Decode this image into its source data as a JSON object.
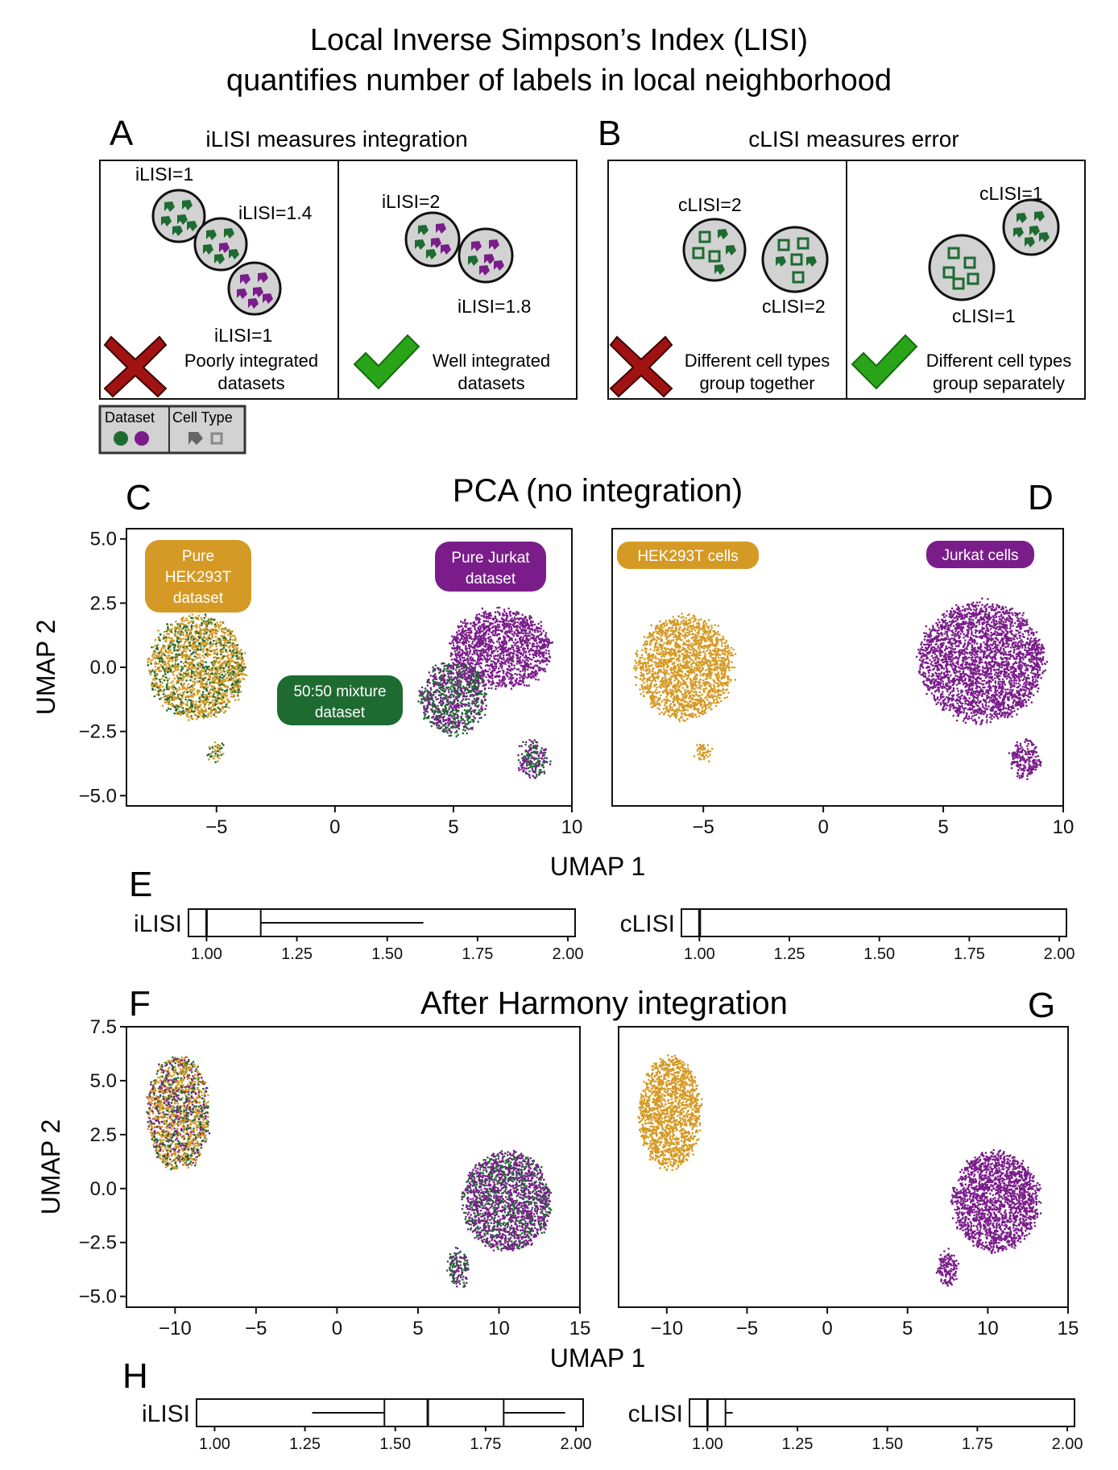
{
  "title_line1": "Local Inverse Simpson’s Index (LISI)",
  "title_line2": "quantifies number of labels in local neighborhood",
  "colors": {
    "green": "#1e6b32",
    "purple": "#7a1d8a",
    "gold": "#d59a25",
    "gray_fill": "#d2d2d2",
    "cross": "#a11313",
    "check": "#2aa519",
    "check_stroke": "#136b0c"
  },
  "panel_a": {
    "letter": "A",
    "title": "iLISI measures integration",
    "bad_labels": [
      "iLISI=1",
      "iLISI=1.4",
      "iLISI=1"
    ],
    "bad_caption": [
      "Poorly integrated",
      "datasets"
    ],
    "good_labels": [
      "iLISI=2",
      "iLISI=1.8"
    ],
    "good_caption": [
      "Well integrated",
      "datasets"
    ]
  },
  "panel_b": {
    "letter": "B",
    "title": "cLISI measures error",
    "bad_labels": [
      "cLISI=2",
      "cLISI=2"
    ],
    "bad_caption": [
      "Different cell types",
      "group together"
    ],
    "good_labels": [
      "cLISI=1",
      "cLISI=1"
    ],
    "good_caption": [
      "Different cell types",
      "group separately"
    ]
  },
  "legend": {
    "dataset_label": "Dataset",
    "celltype_label": "Cell Type"
  },
  "panel_letters": {
    "c": "C",
    "d": "D",
    "e": "E",
    "f": "F",
    "g": "G",
    "h": "H"
  },
  "section_titles": {
    "pca": "PCA (no integration)",
    "harmony": "After Harmony integration"
  },
  "umap_labels": {
    "pure_hek": [
      "Pure",
      "HEK293T",
      "dataset"
    ],
    "pure_jurkat": [
      "Pure Jurkat",
      "dataset"
    ],
    "mixture": [
      "50:50 mixture",
      "dataset"
    ],
    "hek_cells": "HEK293T cells",
    "jurkat_cells": "Jurkat cells"
  },
  "chart_data": [
    {
      "type": "scatter",
      "panel": "C",
      "xlabel": "UMAP 1",
      "ylabel": "UMAP 2",
      "xlim": [
        -8.8,
        10
      ],
      "ylim": [
        -5.4,
        5.4
      ],
      "xticks": [
        "−5",
        "0",
        "5",
        "10"
      ],
      "xtick_values": [
        -5,
        0,
        5,
        10
      ],
      "yticks": [
        "5.0",
        "2.5",
        "0.0",
        "−2.5",
        "−5.0"
      ],
      "ytick_values": [
        5,
        2.5,
        0,
        -2.5,
        -5
      ],
      "clusters": [
        {
          "name": "HEK293T",
          "center": [
            -5.8,
            0.0
          ],
          "radius": [
            2.0,
            2.0
          ],
          "colors": [
            "gold",
            "gold",
            "green"
          ]
        },
        {
          "name": "HEK293T small",
          "center": [
            -5.0,
            -3.3
          ],
          "radius": [
            0.3,
            0.35
          ],
          "colors": [
            "gold",
            "green"
          ]
        },
        {
          "name": "Jurkat",
          "center": [
            7.0,
            0.7
          ],
          "radius": [
            2.1,
            1.5
          ],
          "colors": [
            "purple"
          ]
        },
        {
          "name": "Jurkat mixture",
          "center": [
            5.0,
            -1.2
          ],
          "radius": [
            1.4,
            1.4
          ],
          "colors": [
            "green",
            "purple"
          ]
        },
        {
          "name": "Jurkat small",
          "center": [
            8.4,
            -3.6
          ],
          "radius": [
            0.6,
            0.7
          ],
          "colors": [
            "purple",
            "green"
          ]
        }
      ]
    },
    {
      "type": "scatter",
      "panel": "D",
      "xlim": [
        -8.8,
        10
      ],
      "ylim": [
        -5.4,
        5.4
      ],
      "xticks": [
        "−5",
        "0",
        "5",
        "10"
      ],
      "xtick_values": [
        -5,
        0,
        5,
        10
      ],
      "clusters": [
        {
          "name": "HEK293T cells",
          "center": [
            -5.8,
            0.0
          ],
          "radius": [
            2.0,
            2.0
          ],
          "colors": [
            "gold"
          ]
        },
        {
          "name": "HEK293T small",
          "center": [
            -5.0,
            -3.3
          ],
          "radius": [
            0.3,
            0.35
          ],
          "colors": [
            "gold"
          ]
        },
        {
          "name": "Jurkat cells",
          "center": [
            6.6,
            0.2
          ],
          "radius": [
            2.6,
            2.3
          ],
          "colors": [
            "purple"
          ]
        },
        {
          "name": "Jurkat small",
          "center": [
            8.4,
            -3.6
          ],
          "radius": [
            0.6,
            0.7
          ],
          "colors": [
            "purple"
          ]
        }
      ]
    },
    {
      "type": "box",
      "panel": "E",
      "label": "iLISI",
      "xlim": [
        0.95,
        2.02
      ],
      "xticks": [
        "1.00",
        "1.25",
        "1.50",
        "1.75",
        "2.00"
      ],
      "xtick_values": [
        1.0,
        1.25,
        1.5,
        1.75,
        2.0
      ],
      "whisker_low": 1.0,
      "q1": 1.0,
      "median": 1.0,
      "q3": 1.15,
      "whisker_high": 1.6
    },
    {
      "type": "box",
      "panel": "E",
      "label": "cLISI",
      "xlim": [
        0.95,
        2.02
      ],
      "xticks": [
        "1.00",
        "1.25",
        "1.50",
        "1.75",
        "2.00"
      ],
      "xtick_values": [
        1.0,
        1.25,
        1.5,
        1.75,
        2.0
      ],
      "whisker_low": 1.0,
      "q1": 1.0,
      "median": 1.0,
      "q3": 1.0,
      "whisker_high": 1.0
    },
    {
      "type": "scatter",
      "panel": "F",
      "xlabel": "UMAP 1",
      "ylabel": "UMAP 2",
      "xlim": [
        -13,
        15
      ],
      "ylim": [
        -5.5,
        7.5
      ],
      "xticks": [
        "−10",
        "−5",
        "0",
        "5",
        "10",
        "15"
      ],
      "xtick_values": [
        -10,
        -5,
        0,
        5,
        10,
        15
      ],
      "yticks": [
        "7.5",
        "5.0",
        "2.5",
        "0.0",
        "−2.5",
        "−5.0"
      ],
      "ytick_values": [
        7.5,
        5,
        2.5,
        0,
        -2.5,
        -5
      ],
      "clusters": [
        {
          "name": "HEK293T",
          "center": [
            -9.8,
            3.5
          ],
          "radius": [
            1.9,
            2.6
          ],
          "colors": [
            "gold",
            "green",
            "purple",
            "gold"
          ]
        },
        {
          "name": "Jurkat",
          "center": [
            10.5,
            -0.6
          ],
          "radius": [
            2.7,
            2.3
          ],
          "colors": [
            "purple",
            "green",
            "purple"
          ]
        },
        {
          "name": "Jurkat small",
          "center": [
            7.5,
            -3.7
          ],
          "radius": [
            0.6,
            0.8
          ],
          "colors": [
            "purple",
            "green"
          ]
        }
      ]
    },
    {
      "type": "scatter",
      "panel": "G",
      "xlim": [
        -13,
        15
      ],
      "ylim": [
        -5.5,
        7.5
      ],
      "xticks": [
        "−10",
        "−5",
        "0",
        "5",
        "10",
        "15"
      ],
      "xtick_values": [
        -10,
        -5,
        0,
        5,
        10,
        15
      ],
      "clusters": [
        {
          "name": "HEK293T cells",
          "center": [
            -9.8,
            3.5
          ],
          "radius": [
            1.9,
            2.6
          ],
          "colors": [
            "gold"
          ]
        },
        {
          "name": "Jurkat cells",
          "center": [
            10.5,
            -0.6
          ],
          "radius": [
            2.7,
            2.3
          ],
          "colors": [
            "purple"
          ]
        },
        {
          "name": "Jurkat small",
          "center": [
            7.5,
            -3.7
          ],
          "radius": [
            0.6,
            0.8
          ],
          "colors": [
            "purple"
          ]
        }
      ]
    },
    {
      "type": "box",
      "panel": "H",
      "label": "iLISI",
      "xlim": [
        0.95,
        2.02
      ],
      "xticks": [
        "1.00",
        "1.25",
        "1.50",
        "1.75",
        "2.00"
      ],
      "xtick_values": [
        1.0,
        1.25,
        1.5,
        1.75,
        2.0
      ],
      "whisker_low": 1.27,
      "q1": 1.47,
      "median": 1.59,
      "q3": 1.8,
      "whisker_high": 1.97
    },
    {
      "type": "box",
      "panel": "H",
      "label": "cLISI",
      "xlim": [
        0.95,
        2.02
      ],
      "xticks": [
        "1.00",
        "1.25",
        "1.50",
        "1.75",
        "2.00"
      ],
      "xtick_values": [
        1.0,
        1.25,
        1.5,
        1.75,
        2.0
      ],
      "whisker_low": 1.0,
      "q1": 1.0,
      "median": 1.0,
      "q3": 1.05,
      "whisker_high": 1.07
    }
  ]
}
